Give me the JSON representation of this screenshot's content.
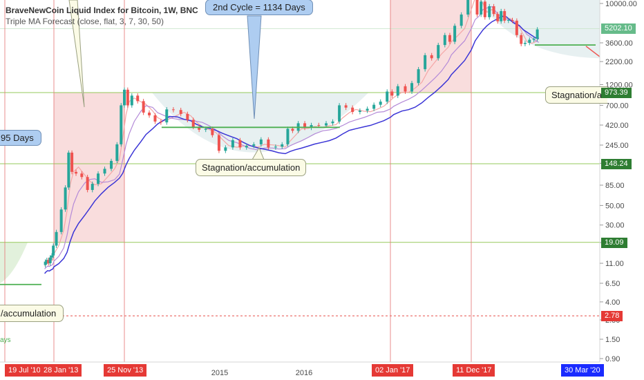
{
  "header": {
    "title": "BraveNewCoin Liquid Index for Bitcoin, 1W, BNC",
    "subtitle": "Triple MA Forecast (close, flat, 3, 7, 30, 50)"
  },
  "callouts": {
    "second_cycle": "2nd Cycle = 1134 Days",
    "first_cycle_partial": "95 Days",
    "stagnation_mid": "Stagnation/accumulation",
    "stagnation_left": "/accumulation",
    "stagnation_right": "Stagnation/a",
    "days_partial": "ays"
  },
  "colors": {
    "up_candle": "#26a69a",
    "down_candle": "#ef5350",
    "ma_fast": "#f4a6a6",
    "ma_mid": "#b48ad8",
    "ma_slow": "#3a34d6",
    "bull_zone": "#f8d7d7",
    "bear_zone": "#e4eef0",
    "marker_line": "#e57373",
    "support_line": "#4caf50",
    "last_price_bg": "#66bb8a",
    "price_level_bg": "#2e7d32",
    "warn_level_bg": "#e53935",
    "date_tag_bg": "#e53935",
    "date_tag_last_bg": "#1a2bff"
  },
  "chart_data": {
    "type": "line",
    "title": "BraveNewCoin Liquid Index for Bitcoin, 1W, BNC",
    "scale": "log",
    "ylim": [
      0.8,
      12500
    ],
    "y_ticks": [
      0.9,
      1.5,
      2.5,
      4.0,
      6.5,
      11.0,
      19.0,
      30.0,
      50.0,
      85.0,
      150.0,
      245.0,
      420.0,
      700.0,
      1200.0,
      2200.0,
      3600.0,
      10000.0
    ],
    "y_tick_labels": [
      "0.90",
      "1.50",
      "2.50",
      "4.00",
      "6.50",
      "11.00",
      "19.00",
      "30.00",
      "50.00",
      "85.00",
      "150.00",
      "245.00",
      "420.00",
      "700.00",
      "1200.00",
      "2200.00",
      "3600.00",
      "10000.00"
    ],
    "x_axis_labels": [
      {
        "label": "2015",
        "date": "2015-01-01"
      },
      {
        "label": "2016",
        "date": "2016-01-01"
      }
    ],
    "date_markers": [
      {
        "label": "19 Jul '10",
        "date": "2010-07-19",
        "color": "red"
      },
      {
        "label": "28 Jan '13",
        "date": "2013-01-28",
        "color": "red"
      },
      {
        "label": "25 Nov '13",
        "date": "2013-11-25",
        "color": "red"
      },
      {
        "label": "02 Jan '17",
        "date": "2017-01-02",
        "color": "red"
      },
      {
        "label": "11 Dec '17",
        "date": "2017-12-11",
        "color": "red"
      },
      {
        "label": "30 Mar '20",
        "date": "2020-03-30",
        "color": "blue"
      }
    ],
    "price_levels": [
      {
        "label": "5202.10",
        "value": 5202.1,
        "kind": "last"
      },
      {
        "label": "973.39",
        "value": 973.39,
        "kind": "level"
      },
      {
        "label": "148.24",
        "value": 148.24,
        "kind": "level"
      },
      {
        "label": "19.09",
        "value": 19.09,
        "kind": "level"
      },
      {
        "label": "2.78",
        "value": 2.78,
        "kind": "warn"
      }
    ],
    "series": [
      {
        "name": "BraveNewCoin Liquid Index for Bitcoin",
        "points": [
          [
            "2012-08-06",
            10.5
          ],
          [
            "2012-09-03",
            11.5
          ],
          [
            "2012-10-01",
            12.0
          ],
          [
            "2012-11-05",
            11.0
          ],
          [
            "2012-12-03",
            12.8
          ],
          [
            "2013-01-07",
            13.5
          ],
          [
            "2013-01-28",
            17.5
          ],
          [
            "2013-02-18",
            25.0
          ],
          [
            "2013-03-11",
            45.0
          ],
          [
            "2013-03-25",
            80.0
          ],
          [
            "2013-04-08",
            200.0
          ],
          [
            "2013-04-22",
            120.0
          ],
          [
            "2013-05-13",
            115.0
          ],
          [
            "2013-06-10",
            105.0
          ],
          [
            "2013-07-01",
            75.0
          ],
          [
            "2013-07-22",
            88.0
          ],
          [
            "2013-08-19",
            115.0
          ],
          [
            "2013-09-16",
            130.0
          ],
          [
            "2013-10-14",
            160.0
          ],
          [
            "2013-11-04",
            250.0
          ],
          [
            "2013-11-18",
            700.0
          ],
          [
            "2013-12-02",
            1050.0
          ],
          [
            "2013-12-16",
            700.0
          ],
          [
            "2014-01-06",
            900.0
          ],
          [
            "2014-02-03",
            780.0
          ],
          [
            "2014-02-24",
            580.0
          ],
          [
            "2014-03-24",
            540.0
          ],
          [
            "2014-04-14",
            460.0
          ],
          [
            "2014-05-12",
            450.0
          ],
          [
            "2014-06-02",
            630.0
          ],
          [
            "2014-07-07",
            620.0
          ],
          [
            "2014-08-04",
            560.0
          ],
          [
            "2014-09-01",
            480.0
          ],
          [
            "2014-09-22",
            400.0
          ],
          [
            "2014-10-20",
            370.0
          ],
          [
            "2014-11-17",
            380.0
          ],
          [
            "2014-12-15",
            320.0
          ],
          [
            "2015-01-12",
            210.0
          ],
          [
            "2015-02-09",
            230.0
          ],
          [
            "2015-03-16",
            280.0
          ],
          [
            "2015-04-13",
            230.0
          ],
          [
            "2015-05-11",
            240.0
          ],
          [
            "2015-06-15",
            250.0
          ],
          [
            "2015-07-13",
            285.0
          ],
          [
            "2015-08-17",
            230.0
          ],
          [
            "2015-09-14",
            235.0
          ],
          [
            "2015-10-12",
            250.0
          ],
          [
            "2015-11-02",
            380.0
          ],
          [
            "2015-11-23",
            360.0
          ],
          [
            "2015-12-21",
            440.0
          ],
          [
            "2016-01-18",
            390.0
          ],
          [
            "2016-02-15",
            420.0
          ],
          [
            "2016-03-21",
            415.0
          ],
          [
            "2016-04-18",
            440.0
          ],
          [
            "2016-05-16",
            460.0
          ],
          [
            "2016-06-13",
            700.0
          ],
          [
            "2016-07-11",
            660.0
          ],
          [
            "2016-08-08",
            590.0
          ],
          [
            "2016-09-12",
            610.0
          ],
          [
            "2016-10-10",
            640.0
          ],
          [
            "2016-11-07",
            710.0
          ],
          [
            "2016-12-05",
            770.0
          ],
          [
            "2017-01-02",
            1000.0
          ],
          [
            "2017-01-16",
            900.0
          ],
          [
            "2017-02-20",
            1150.0
          ],
          [
            "2017-03-20",
            1000.0
          ],
          [
            "2017-04-17",
            1250.0
          ],
          [
            "2017-05-15",
            1800.0
          ],
          [
            "2017-06-12",
            2600.0
          ],
          [
            "2017-07-10",
            2400.0
          ],
          [
            "2017-08-07",
            3400.0
          ],
          [
            "2017-09-04",
            4400.0
          ],
          [
            "2017-09-18",
            3700.0
          ],
          [
            "2017-10-16",
            5600.0
          ],
          [
            "2017-11-13",
            7500.0
          ],
          [
            "2017-12-11",
            16000.0
          ],
          [
            "2018-01-08",
            14000.0
          ],
          [
            "2018-02-05",
            7500.0
          ],
          [
            "2018-03-05",
            10500.0
          ],
          [
            "2018-04-02",
            7000.0
          ],
          [
            "2018-05-07",
            9300.0
          ],
          [
            "2018-06-04",
            7600.0
          ],
          [
            "2018-07-02",
            6300.0
          ],
          [
            "2018-07-23",
            8200.0
          ],
          [
            "2018-08-20",
            6400.0
          ],
          [
            "2018-09-17",
            6500.0
          ],
          [
            "2018-10-15",
            6400.0
          ],
          [
            "2018-11-19",
            4400.0
          ],
          [
            "2018-12-17",
            3500.0
          ],
          [
            "2019-01-14",
            3600.0
          ],
          [
            "2019-02-18",
            3900.0
          ],
          [
            "2019-03-18",
            4000.0
          ],
          [
            "2019-04-08",
            5100.0
          ]
        ]
      }
    ]
  }
}
